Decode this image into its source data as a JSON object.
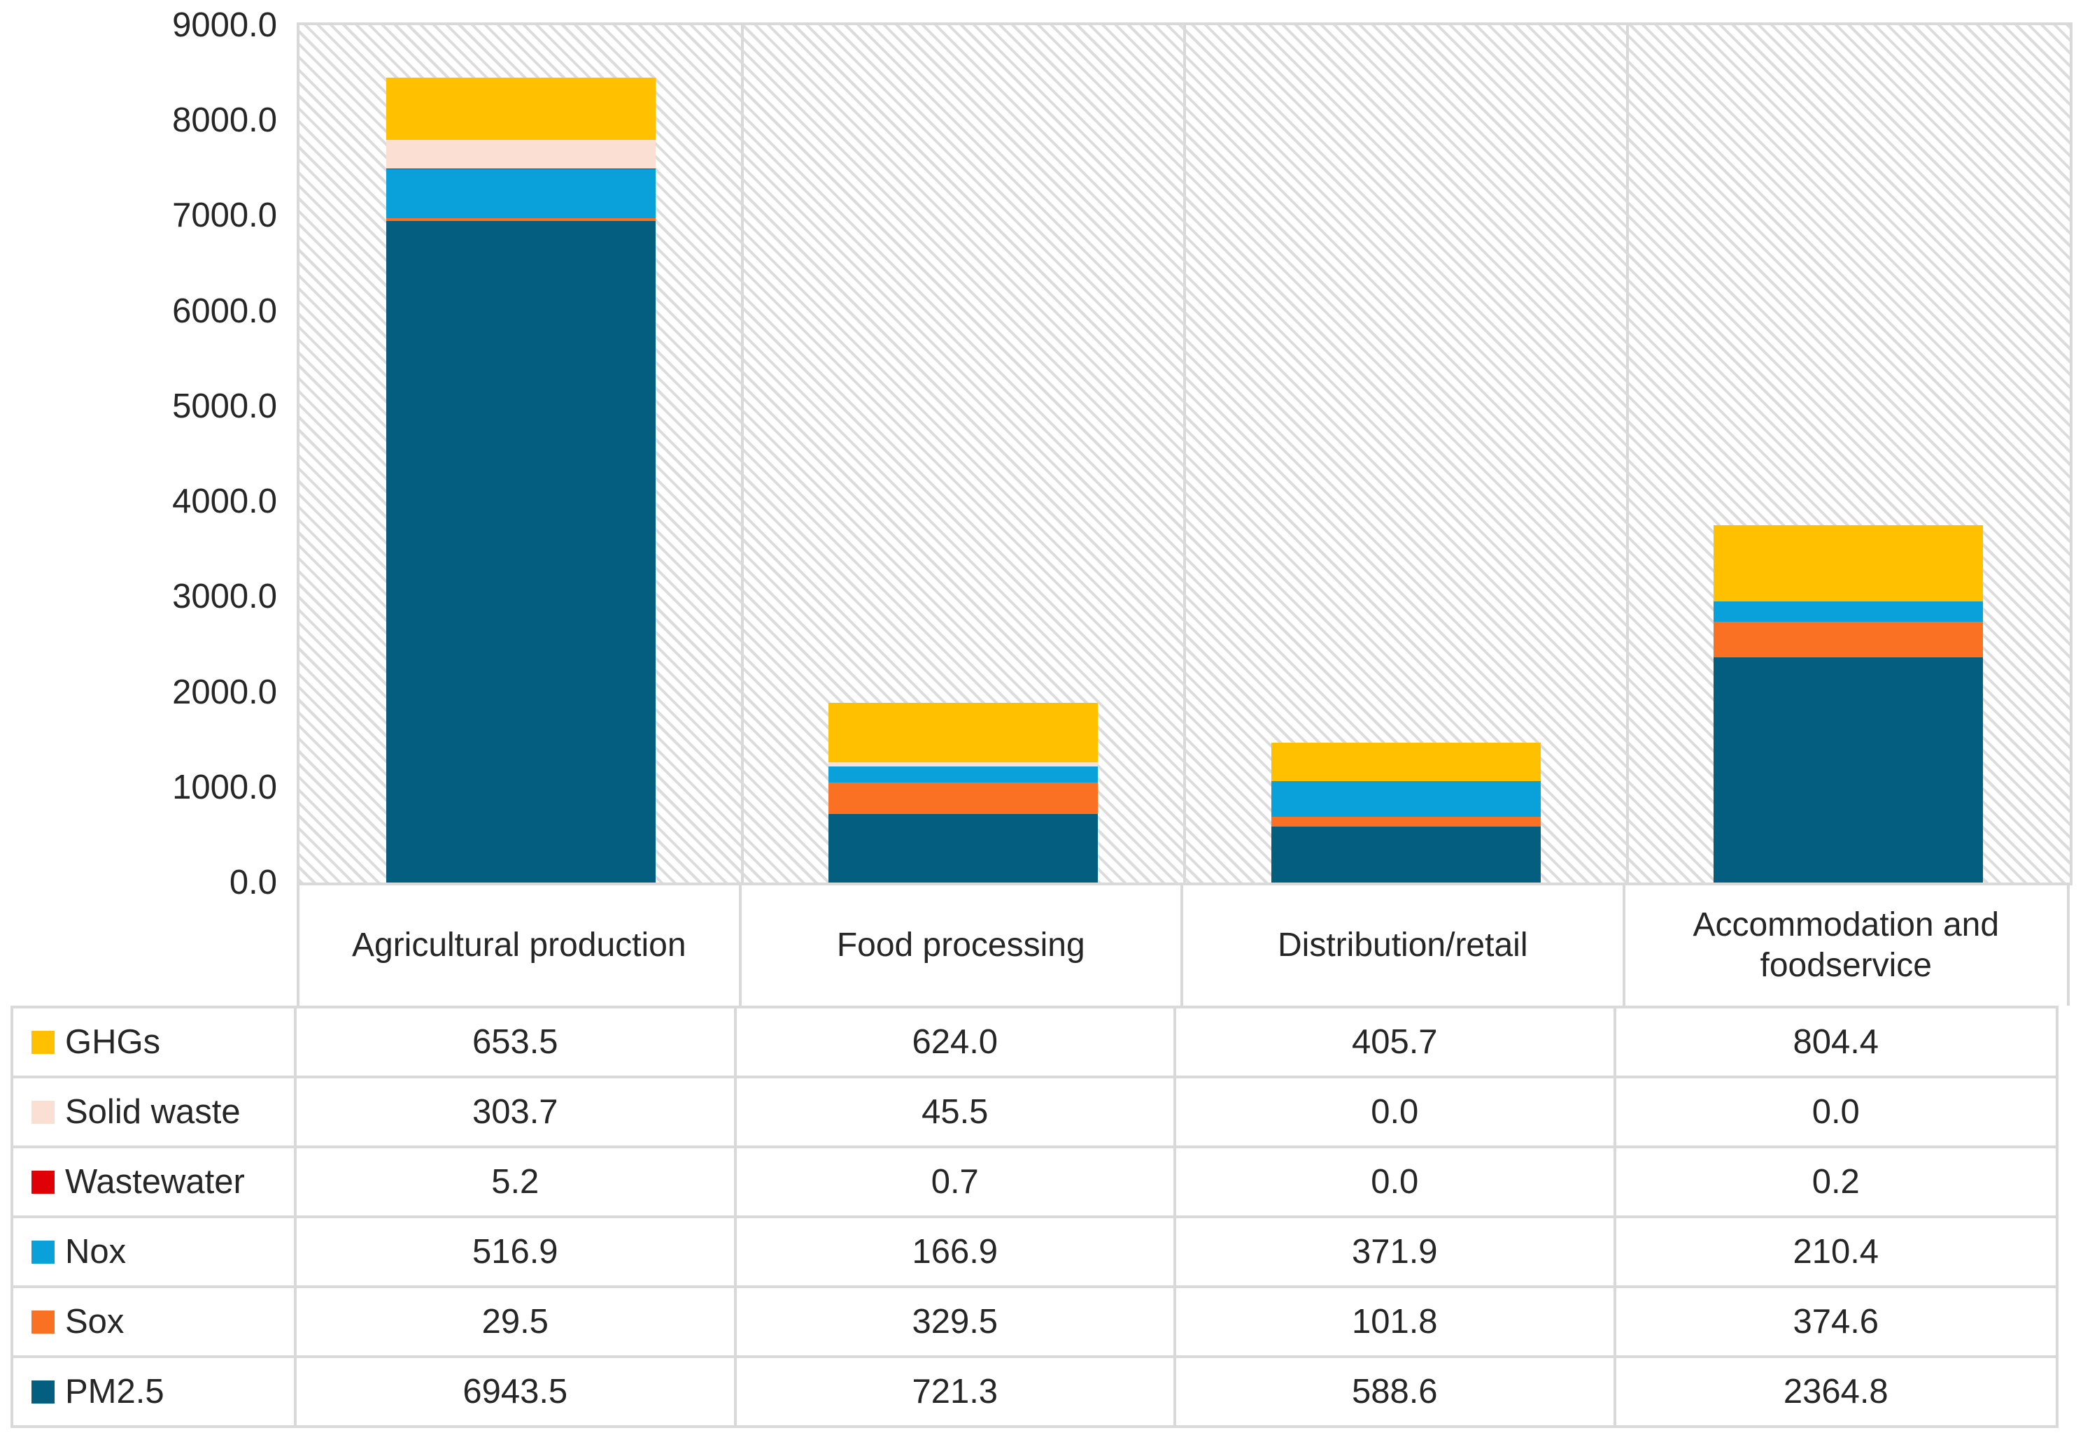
{
  "chart_data": {
    "type": "bar",
    "subtype": "stacked-vertical-with-data-table",
    "title": "",
    "xlabel": "",
    "ylabel": "",
    "categories": [
      "Agricultural production",
      "Food processing",
      "Distribution/retail",
      "Accommodation and foodservice"
    ],
    "series": [
      {
        "name": "GHGs",
        "color": "#FFC000",
        "values": [
          653.5,
          624.0,
          405.7,
          804.4
        ]
      },
      {
        "name": "Solid waste",
        "color": "#FBDFD3",
        "values": [
          303.7,
          45.5,
          0.0,
          0.0
        ]
      },
      {
        "name": "Wastewater",
        "color": "#DF0008",
        "values": [
          5.2,
          0.7,
          0.0,
          0.2
        ]
      },
      {
        "name": "Nox",
        "color": "#0AA1DB",
        "values": [
          516.9,
          166.9,
          371.9,
          210.4
        ]
      },
      {
        "name": "Sox",
        "color": "#FB7124",
        "values": [
          29.5,
          329.5,
          101.8,
          374.6
        ]
      },
      {
        "name": "PM2.5",
        "color": "#045E80",
        "values": [
          6943.5,
          721.3,
          588.6,
          2364.8
        ]
      }
    ],
    "stack_order_bottom_to_top": [
      "PM2.5",
      "Sox",
      "Nox",
      "Wastewater",
      "Solid waste",
      "GHGs"
    ],
    "y_axis": {
      "min": 0,
      "max": 9000,
      "step": 1000,
      "tick_labels": [
        "9000.0",
        "8000.0",
        "7000.0",
        "6000.0",
        "5000.0",
        "4000.0",
        "3000.0",
        "2000.0",
        "1000.0",
        "0.0"
      ]
    },
    "value_format": "one_decimal",
    "grid": false,
    "plot_background": "light-downward-diagonal-hatch",
    "legend_position": "left-column-of-data-table"
  },
  "styles": {
    "border_color": "#d9d9d9",
    "hatch_color": "#dcdcdc",
    "text_color": "#262626",
    "background_color": "#ffffff"
  }
}
